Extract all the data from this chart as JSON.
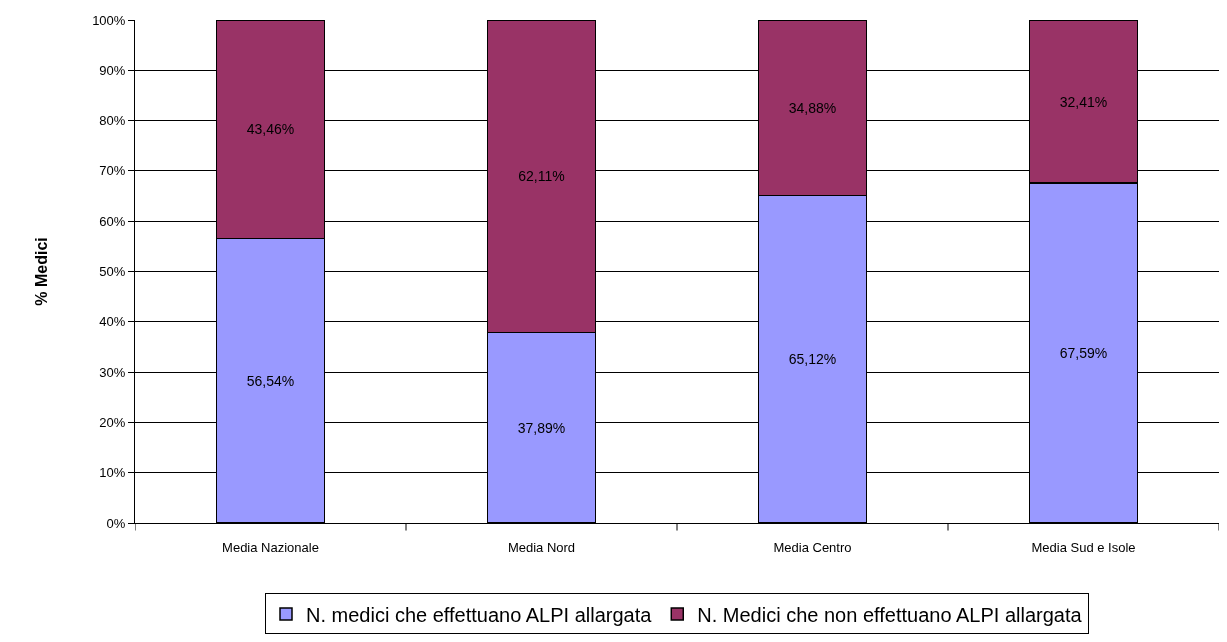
{
  "chart_data": {
    "type": "bar",
    "stacked": true,
    "ylabel": "% Medici",
    "categories": [
      "Media Nazionale",
      "Media Nord",
      "Media Centro",
      "Media Sud e Isole"
    ],
    "series": [
      {
        "name": "N. medici che effettuano ALPI allargata",
        "color": "#9999ff",
        "values": [
          56.54,
          37.89,
          65.12,
          67.59
        ],
        "value_labels": [
          "56,54%",
          "37,89%",
          "65,12%",
          "67,59%"
        ]
      },
      {
        "name": "N. Medici che non effettuano ALPI allargata",
        "color": "#993366",
        "values": [
          43.46,
          62.11,
          34.88,
          32.41
        ],
        "value_labels": [
          "43,46%",
          "62,11%",
          "34,88%",
          "32,41%"
        ]
      }
    ],
    "ylim": [
      0,
      100
    ],
    "yticks": [
      {
        "value": 0,
        "label": "0%"
      },
      {
        "value": 10,
        "label": "10%"
      },
      {
        "value": 20,
        "label": "20%"
      },
      {
        "value": 30,
        "label": "30%"
      },
      {
        "value": 40,
        "label": "40%"
      },
      {
        "value": 50,
        "label": "50%"
      },
      {
        "value": 60,
        "label": "60%"
      },
      {
        "value": 70,
        "label": "70%"
      },
      {
        "value": 80,
        "label": "80%"
      },
      {
        "value": 90,
        "label": "90%"
      },
      {
        "value": 100,
        "label": "100%"
      }
    ],
    "grid": "y",
    "legend": "bottom"
  }
}
